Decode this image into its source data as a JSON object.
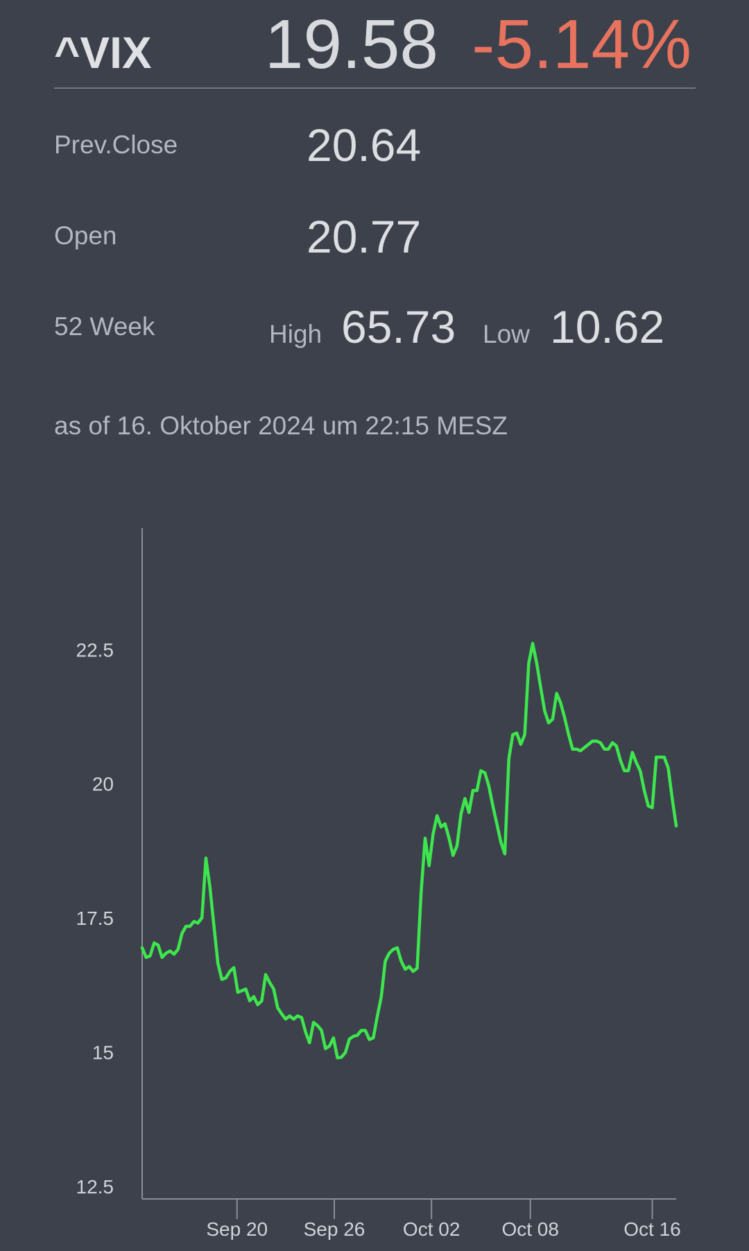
{
  "header": {
    "symbol": "^VIX",
    "price": "19.58",
    "change": "-5.14%"
  },
  "stats": {
    "prev_close_label": "Prev.Close",
    "prev_close": "20.64",
    "open_label": "Open",
    "open": "20.77",
    "week52_label": "52 Week",
    "high_label": "High",
    "high": "65.73",
    "low_label": "Low",
    "low": "10.62"
  },
  "timestamp": "as of 16. Oktober 2024 um 22:15 MESZ",
  "chart_data": {
    "type": "line",
    "color": "#3ee64d",
    "values": [
      16.98,
      16.8,
      16.83,
      17.07,
      17.03,
      16.8,
      16.88,
      16.92,
      16.86,
      16.95,
      17.25,
      17.38,
      17.38,
      17.47,
      17.44,
      17.54,
      18.65,
      18.11,
      17.4,
      16.69,
      16.39,
      16.42,
      16.54,
      16.61,
      16.15,
      16.18,
      16.21,
      15.99,
      16.07,
      15.92,
      15.99,
      16.48,
      16.33,
      16.21,
      15.86,
      15.75,
      15.65,
      15.71,
      15.65,
      15.71,
      15.68,
      15.41,
      15.21,
      15.59,
      15.53,
      15.44,
      15.1,
      15.15,
      15.3,
      14.93,
      14.94,
      15.03,
      15.28,
      15.33,
      15.35,
      15.44,
      15.44,
      15.27,
      15.3,
      15.7,
      16.07,
      16.73,
      16.88,
      16.95,
      16.98,
      16.73,
      16.58,
      16.63,
      16.54,
      16.6,
      18.01,
      19.02,
      18.51,
      19.1,
      19.44,
      19.23,
      19.29,
      19.02,
      18.7,
      18.88,
      19.47,
      19.76,
      19.5,
      19.91,
      19.91,
      20.28,
      20.24,
      19.99,
      19.62,
      19.29,
      18.95,
      18.73,
      20.5,
      20.95,
      20.98,
      20.77,
      20.95,
      22.28,
      22.65,
      22.28,
      21.83,
      21.39,
      21.17,
      21.24,
      21.72,
      21.54,
      21.27,
      20.95,
      20.68,
      20.68,
      20.65,
      20.71,
      20.77,
      20.83,
      20.83,
      20.8,
      20.68,
      20.68,
      20.8,
      20.74,
      20.47,
      20.28,
      20.28,
      20.62,
      20.43,
      20.27,
      19.91,
      19.62,
      19.59,
      20.53,
      20.53,
      20.53,
      20.33,
      19.76,
      19.25
    ],
    "xlim": [
      0,
      134
    ],
    "xticks": [
      {
        "value": 23.8,
        "label": "Sep 20"
      },
      {
        "value": 48.2,
        "label": "Sep 26"
      },
      {
        "value": 72.6,
        "label": "Oct 02"
      },
      {
        "value": 97.4,
        "label": "Oct 08"
      },
      {
        "value": 128,
        "label": "Oct 16"
      }
    ],
    "ylim": [
      12.3,
      24.8
    ],
    "yticks": [
      12.5,
      15,
      17.5,
      20,
      22.5
    ],
    "grid": false
  }
}
